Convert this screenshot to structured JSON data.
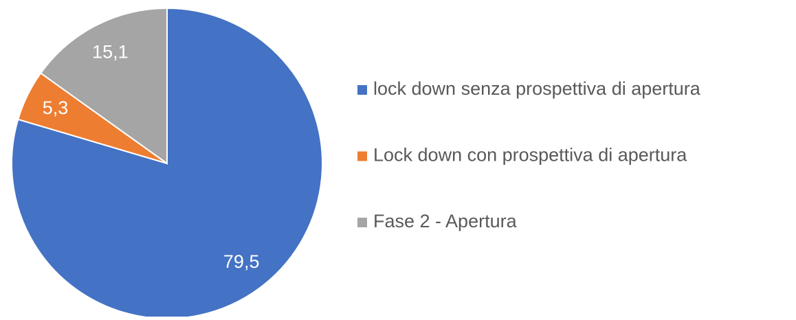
{
  "chart_data": {
    "type": "pie",
    "categories": [
      "lock down senza prospettiva di apertura",
      "Lock down con prospettiva di apertura",
      "Fase 2 - Apertura"
    ],
    "values": [
      79.5,
      5.3,
      15.1
    ],
    "value_labels": [
      "79,5",
      "5,3",
      "15,1"
    ],
    "colors": [
      "#4472c4",
      "#ed7d31",
      "#a5a5a5"
    ],
    "legend": "right"
  }
}
